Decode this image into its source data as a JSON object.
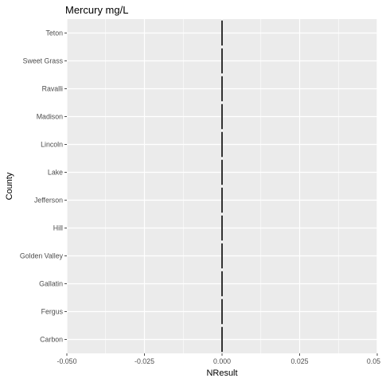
{
  "chart_data": {
    "type": "bar",
    "orientation": "horizontal",
    "title": "Mercury mg/L",
    "xlabel": "NResult",
    "ylabel": "County",
    "categories": [
      "Carbon",
      "Fergus",
      "Gallatin",
      "Golden Valley",
      "Hill",
      "Jefferson",
      "Lake",
      "Lincoln",
      "Madison",
      "Ravalli",
      "Sweet Grass",
      "Teton"
    ],
    "values": [
      0,
      0,
      0,
      0,
      0,
      0,
      0,
      0,
      0,
      0,
      0,
      0
    ],
    "xlim": [
      -0.05,
      0.05
    ],
    "xticks": [
      -0.05,
      -0.025,
      0,
      0.025,
      0.05
    ],
    "xtick_labels": [
      "-0.050",
      "-0.025",
      "0.000",
      "0.025",
      "0.05"
    ],
    "grid": true,
    "colors": {
      "panel_background": "#EBEBEB",
      "grid_major": "#FFFFFF",
      "mark": "#333333",
      "text": "#000000",
      "tick_text": "#4D4D4D"
    }
  }
}
